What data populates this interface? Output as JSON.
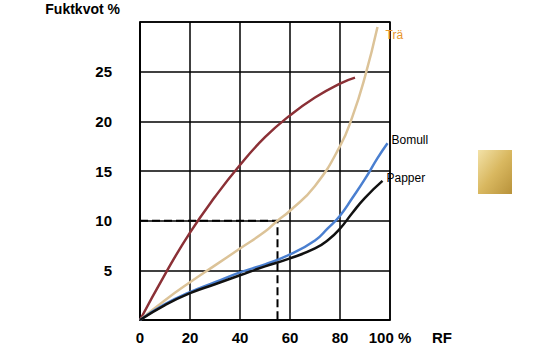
{
  "chart_data": {
    "type": "line",
    "x_label": "RF",
    "y_label": "Fuktkvot %",
    "xlim": [
      0,
      100
    ],
    "ylim": [
      0,
      30
    ],
    "xticks": [
      0,
      20,
      40,
      60,
      80,
      {
        "value": 100,
        "label": "100 %"
      }
    ],
    "yticks": [
      5,
      10,
      15,
      20,
      25
    ],
    "grid": true,
    "series": [
      {
        "color": "#8b3036",
        "x": [
          0,
          10,
          20,
          30,
          40,
          50,
          60,
          70,
          80,
          86
        ],
        "values": [
          0,
          4.6,
          8.8,
          12.4,
          15.6,
          18.4,
          20.6,
          22.4,
          23.8,
          24.4
        ]
      },
      {
        "name": "Trä",
        "color": "#dcc398",
        "x": [
          0,
          10,
          20,
          30,
          40,
          50,
          55,
          60,
          70,
          80,
          85,
          90,
          95
        ],
        "values": [
          0,
          2,
          3.8,
          5.5,
          7.2,
          8.9,
          10,
          11,
          13.5,
          17.5,
          20.5,
          24.5,
          29.5
        ]
      },
      {
        "name": "Bomull",
        "color": "#4a7fd0",
        "x": [
          0,
          10,
          20,
          30,
          40,
          50,
          60,
          70,
          75,
          80,
          85,
          90,
          95,
          99
        ],
        "values": [
          0,
          1.6,
          2.8,
          3.8,
          4.8,
          5.6,
          6.6,
          8,
          9.2,
          10.5,
          12.3,
          14.2,
          16.3,
          17.8
        ]
      },
      {
        "name": "Papper",
        "color": "#111111",
        "x": [
          0,
          10,
          20,
          30,
          40,
          50,
          60,
          70,
          75,
          80,
          85,
          90,
          97
        ],
        "values": [
          0,
          1.5,
          2.7,
          3.6,
          4.5,
          5.4,
          6.2,
          7.2,
          8,
          9.2,
          10.8,
          12.3,
          14
        ]
      }
    ],
    "guide": {
      "x": 55,
      "y": 10,
      "line_style": "dashed"
    }
  }
}
